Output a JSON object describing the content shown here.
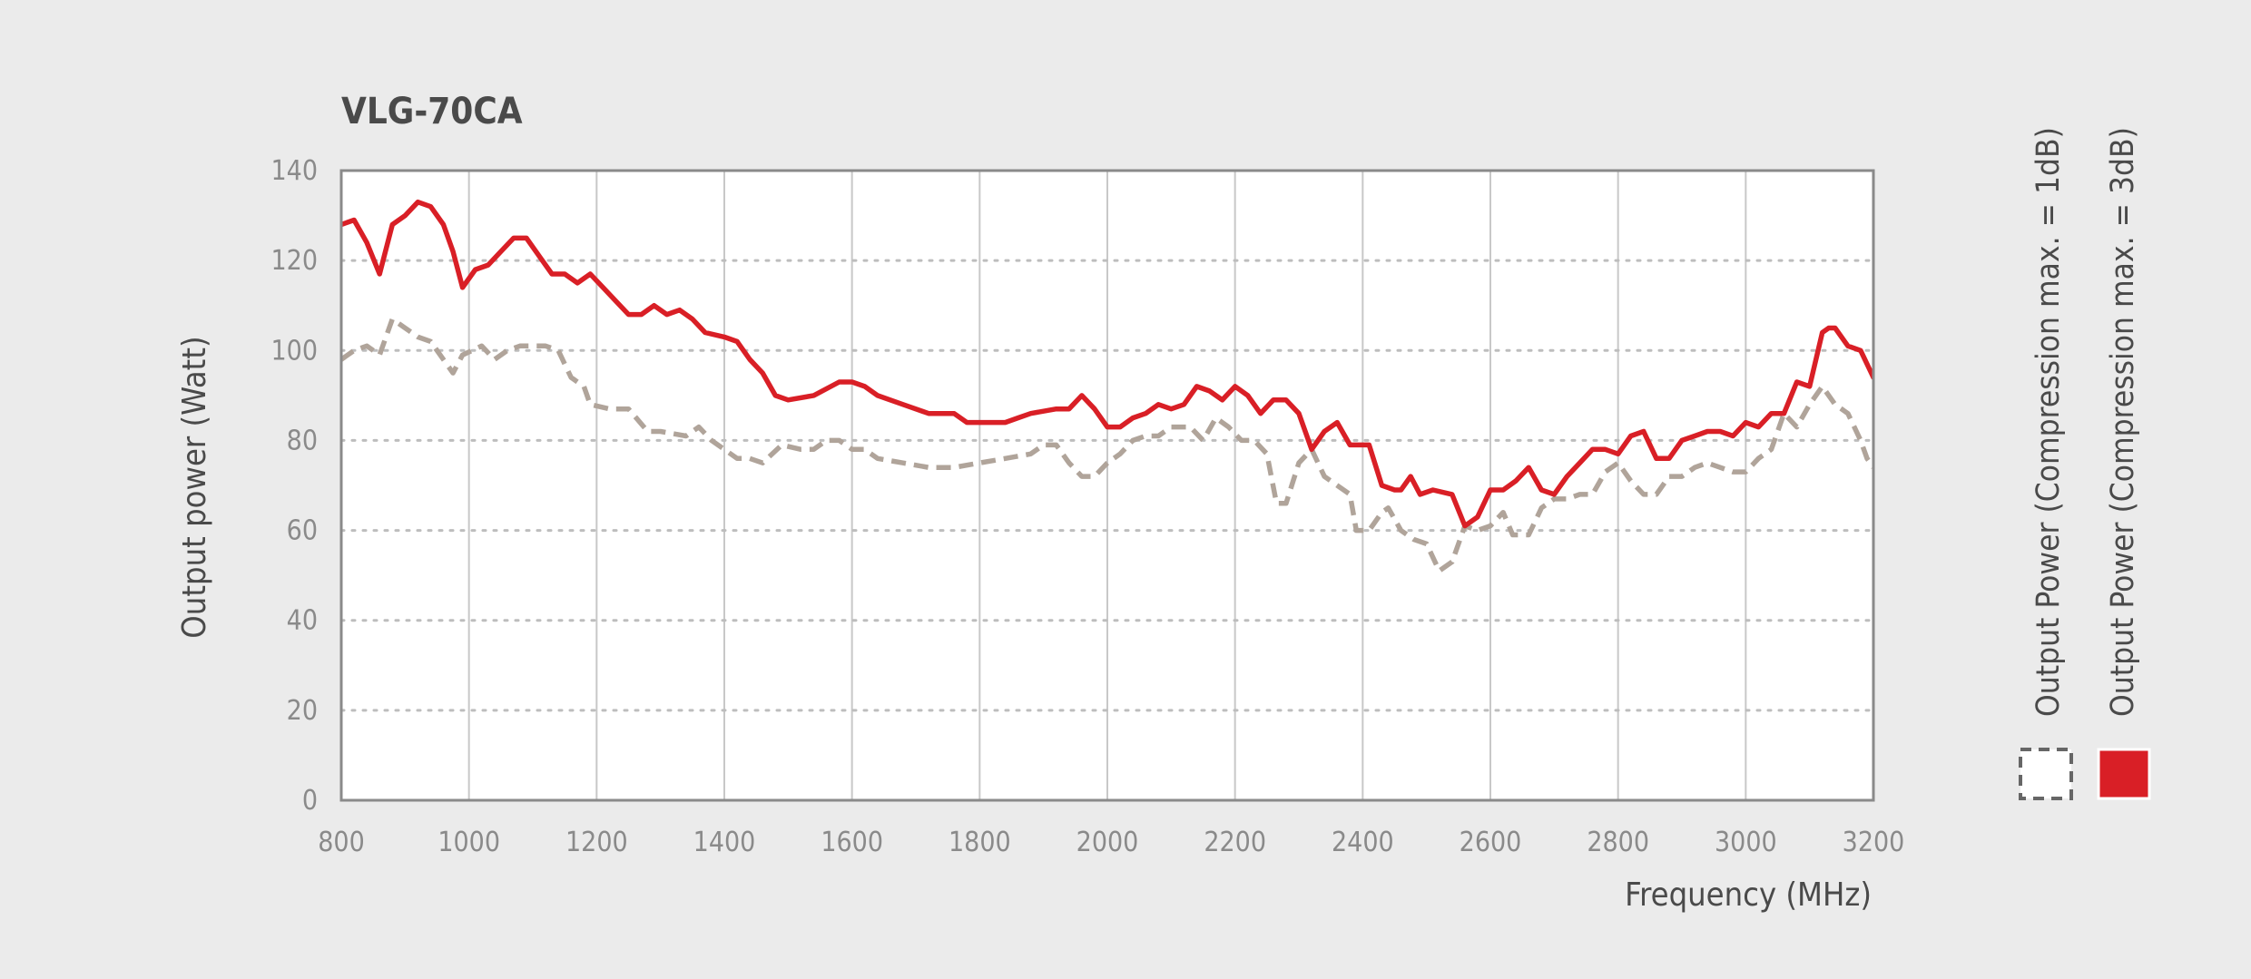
{
  "chart_data": {
    "type": "line",
    "title": "VLG-70CA",
    "xlabel": "Frequency (MHz)",
    "ylabel": "Output power (Watt)",
    "xlim": [
      800,
      3200
    ],
    "ylim": [
      0,
      140
    ],
    "x_ticks": [
      800,
      1000,
      1200,
      1400,
      1600,
      1800,
      2000,
      2200,
      2400,
      2600,
      2800,
      3000,
      3200
    ],
    "y_ticks": [
      0,
      20,
      40,
      60,
      80,
      100,
      120,
      140
    ],
    "grid": {
      "x": true,
      "y": true,
      "y_style": "dotted"
    },
    "legend_position": "right",
    "series": [
      {
        "name": "Output Power (Compression max. = 1dB)",
        "color": "#b0a49a",
        "line_style": "dashed",
        "legend_swatch": "dashed-box",
        "points": [
          [
            800,
            98
          ],
          [
            820,
            100
          ],
          [
            840,
            101
          ],
          [
            860,
            99
          ],
          [
            880,
            107
          ],
          [
            900,
            105
          ],
          [
            920,
            103
          ],
          [
            940,
            102
          ],
          [
            960,
            98
          ],
          [
            975,
            95
          ],
          [
            990,
            99
          ],
          [
            1020,
            101
          ],
          [
            1040,
            98
          ],
          [
            1060,
            100
          ],
          [
            1080,
            101
          ],
          [
            1100,
            101
          ],
          [
            1120,
            101
          ],
          [
            1140,
            100
          ],
          [
            1160,
            94
          ],
          [
            1180,
            92
          ],
          [
            1190,
            88
          ],
          [
            1220,
            87
          ],
          [
            1250,
            87
          ],
          [
            1280,
            82
          ],
          [
            1300,
            82
          ],
          [
            1340,
            81
          ],
          [
            1360,
            83
          ],
          [
            1380,
            80
          ],
          [
            1400,
            78
          ],
          [
            1420,
            76
          ],
          [
            1440,
            76
          ],
          [
            1460,
            75
          ],
          [
            1490,
            79
          ],
          [
            1520,
            78
          ],
          [
            1540,
            78
          ],
          [
            1560,
            80
          ],
          [
            1580,
            80
          ],
          [
            1600,
            78
          ],
          [
            1620,
            78
          ],
          [
            1640,
            76
          ],
          [
            1680,
            75
          ],
          [
            1720,
            74
          ],
          [
            1760,
            74
          ],
          [
            1800,
            75
          ],
          [
            1840,
            76
          ],
          [
            1880,
            77
          ],
          [
            1900,
            79
          ],
          [
            1920,
            79
          ],
          [
            1940,
            75
          ],
          [
            1960,
            72
          ],
          [
            1980,
            72
          ],
          [
            2000,
            75
          ],
          [
            2020,
            77
          ],
          [
            2040,
            80
          ],
          [
            2060,
            81
          ],
          [
            2080,
            81
          ],
          [
            2100,
            83
          ],
          [
            2130,
            83
          ],
          [
            2150,
            80
          ],
          [
            2170,
            85
          ],
          [
            2190,
            83
          ],
          [
            2210,
            80
          ],
          [
            2230,
            80
          ],
          [
            2250,
            77
          ],
          [
            2265,
            66
          ],
          [
            2280,
            66
          ],
          [
            2300,
            75
          ],
          [
            2320,
            78
          ],
          [
            2340,
            72
          ],
          [
            2360,
            70
          ],
          [
            2380,
            68
          ],
          [
            2390,
            60
          ],
          [
            2410,
            60
          ],
          [
            2430,
            64
          ],
          [
            2440,
            65
          ],
          [
            2460,
            60
          ],
          [
            2480,
            58
          ],
          [
            2500,
            57
          ],
          [
            2520,
            51
          ],
          [
            2540,
            53
          ],
          [
            2560,
            61
          ],
          [
            2580,
            60
          ],
          [
            2600,
            61
          ],
          [
            2620,
            64
          ],
          [
            2635,
            59
          ],
          [
            2660,
            59
          ],
          [
            2680,
            65
          ],
          [
            2700,
            67
          ],
          [
            2720,
            67
          ],
          [
            2740,
            68
          ],
          [
            2760,
            68
          ],
          [
            2780,
            73
          ],
          [
            2800,
            75
          ],
          [
            2820,
            71
          ],
          [
            2840,
            68
          ],
          [
            2860,
            68
          ],
          [
            2880,
            72
          ],
          [
            2900,
            72
          ],
          [
            2920,
            74
          ],
          [
            2940,
            75
          ],
          [
            2960,
            74
          ],
          [
            2980,
            73
          ],
          [
            3000,
            73
          ],
          [
            3020,
            76
          ],
          [
            3040,
            78
          ],
          [
            3060,
            86
          ],
          [
            3080,
            83
          ],
          [
            3100,
            88
          ],
          [
            3120,
            92
          ],
          [
            3140,
            88
          ],
          [
            3160,
            86
          ],
          [
            3180,
            80
          ],
          [
            3190,
            76
          ],
          [
            3200,
            74
          ]
        ]
      },
      {
        "name": "Output Power (Compression max. = 3dB)",
        "color": "#d91f26",
        "line_style": "solid",
        "legend_swatch": "filled-box",
        "points": [
          [
            800,
            128
          ],
          [
            820,
            129
          ],
          [
            840,
            124
          ],
          [
            860,
            117
          ],
          [
            880,
            128
          ],
          [
            900,
            130
          ],
          [
            920,
            133
          ],
          [
            940,
            132
          ],
          [
            960,
            128
          ],
          [
            975,
            122
          ],
          [
            990,
            114
          ],
          [
            1010,
            118
          ],
          [
            1030,
            119
          ],
          [
            1050,
            122
          ],
          [
            1070,
            125
          ],
          [
            1090,
            125
          ],
          [
            1110,
            121
          ],
          [
            1130,
            117
          ],
          [
            1150,
            117
          ],
          [
            1170,
            115
          ],
          [
            1190,
            117
          ],
          [
            1210,
            114
          ],
          [
            1230,
            111
          ],
          [
            1250,
            108
          ],
          [
            1270,
            108
          ],
          [
            1290,
            110
          ],
          [
            1310,
            108
          ],
          [
            1330,
            109
          ],
          [
            1350,
            107
          ],
          [
            1370,
            104
          ],
          [
            1400,
            103
          ],
          [
            1420,
            102
          ],
          [
            1440,
            98
          ],
          [
            1460,
            95
          ],
          [
            1480,
            90
          ],
          [
            1500,
            89
          ],
          [
            1540,
            90
          ],
          [
            1580,
            93
          ],
          [
            1600,
            93
          ],
          [
            1620,
            92
          ],
          [
            1640,
            90
          ],
          [
            1680,
            88
          ],
          [
            1720,
            86
          ],
          [
            1740,
            86
          ],
          [
            1760,
            86
          ],
          [
            1780,
            84
          ],
          [
            1820,
            84
          ],
          [
            1840,
            84
          ],
          [
            1860,
            85
          ],
          [
            1880,
            86
          ],
          [
            1920,
            87
          ],
          [
            1940,
            87
          ],
          [
            1960,
            90
          ],
          [
            1980,
            87
          ],
          [
            2000,
            83
          ],
          [
            2020,
            83
          ],
          [
            2040,
            85
          ],
          [
            2060,
            86
          ],
          [
            2080,
            88
          ],
          [
            2100,
            87
          ],
          [
            2120,
            88
          ],
          [
            2140,
            92
          ],
          [
            2160,
            91
          ],
          [
            2180,
            89
          ],
          [
            2200,
            92
          ],
          [
            2220,
            90
          ],
          [
            2240,
            86
          ],
          [
            2260,
            89
          ],
          [
            2280,
            89
          ],
          [
            2300,
            86
          ],
          [
            2320,
            78
          ],
          [
            2340,
            82
          ],
          [
            2360,
            84
          ],
          [
            2380,
            79
          ],
          [
            2410,
            79
          ],
          [
            2430,
            70
          ],
          [
            2450,
            69
          ],
          [
            2460,
            69
          ],
          [
            2475,
            72
          ],
          [
            2490,
            68
          ],
          [
            2510,
            69
          ],
          [
            2540,
            68
          ],
          [
            2560,
            61
          ],
          [
            2580,
            63
          ],
          [
            2600,
            69
          ],
          [
            2620,
            69
          ],
          [
            2640,
            71
          ],
          [
            2660,
            74
          ],
          [
            2680,
            69
          ],
          [
            2700,
            68
          ],
          [
            2720,
            72
          ],
          [
            2740,
            75
          ],
          [
            2760,
            78
          ],
          [
            2780,
            78
          ],
          [
            2800,
            77
          ],
          [
            2820,
            81
          ],
          [
            2840,
            82
          ],
          [
            2860,
            76
          ],
          [
            2880,
            76
          ],
          [
            2900,
            80
          ],
          [
            2920,
            81
          ],
          [
            2940,
            82
          ],
          [
            2960,
            82
          ],
          [
            2980,
            81
          ],
          [
            3000,
            84
          ],
          [
            3020,
            83
          ],
          [
            3040,
            86
          ],
          [
            3060,
            86
          ],
          [
            3080,
            93
          ],
          [
            3100,
            92
          ],
          [
            3120,
            104
          ],
          [
            3130,
            105
          ],
          [
            3140,
            105
          ],
          [
            3160,
            101
          ],
          [
            3180,
            100
          ],
          [
            3200,
            94
          ],
          [
            3220,
            91
          ],
          [
            3240,
            90
          ]
        ]
      }
    ]
  }
}
